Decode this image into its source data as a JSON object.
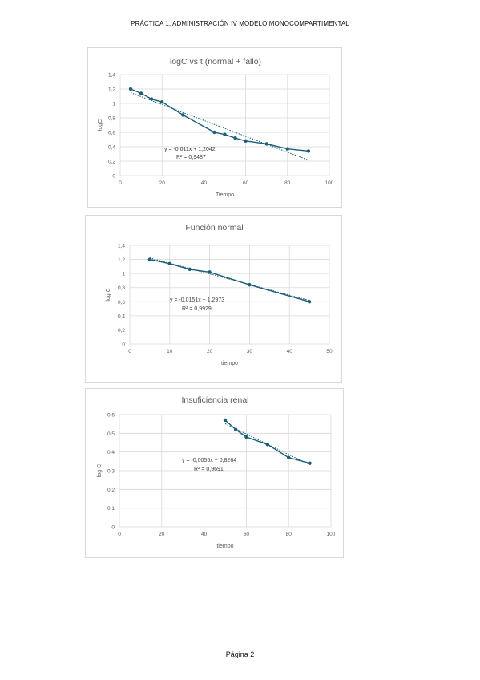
{
  "header": {
    "title": "PRÁCTICA 1. ADMINISTRACIÓN IV MODELO MONOCOMPARTIMENTAL"
  },
  "footer": {
    "page_label": "Página 2"
  },
  "colors": {
    "series": "#1b5e7a",
    "grid": "#d9d9d9",
    "axis_text": "#595959"
  },
  "chart_data": [
    {
      "type": "scatter",
      "title": "logC vs t (normal + fallo)",
      "xlabel": "Tiempo",
      "ylabel": "logC",
      "xlim": [
        0,
        100
      ],
      "ylim": [
        0,
        1.4
      ],
      "xticks": [
        "0",
        "20",
        "40",
        "60",
        "80",
        "100"
      ],
      "yticks": [
        "0",
        "0,2",
        "0,4",
        "0,6",
        "0,8",
        "1",
        "1,2",
        "1,4"
      ],
      "grid": true,
      "x": [
        5,
        10,
        15,
        20,
        30,
        45,
        50,
        55,
        60,
        70,
        80,
        90
      ],
      "y": [
        1.2,
        1.14,
        1.06,
        1.02,
        0.84,
        0.6,
        0.57,
        0.52,
        0.48,
        0.44,
        0.37,
        0.34
      ],
      "trendline": {
        "slope": -0.011,
        "intercept": 1.2042,
        "x_range": [
          5,
          90
        ]
      },
      "equation": "y = -0,011x + 1,2042",
      "r2": "R² = 0,9487"
    },
    {
      "type": "scatter",
      "title": "Función normal",
      "xlabel": "tiempo",
      "ylabel": "log C",
      "xlim": [
        0,
        50
      ],
      "ylim": [
        0,
        1.4
      ],
      "xticks": [
        "0",
        "10",
        "20",
        "30",
        "40",
        "50"
      ],
      "yticks": [
        "0",
        "0,2",
        "0,4",
        "0,6",
        "0,8",
        "1",
        "1,2",
        "1,4"
      ],
      "grid": true,
      "x": [
        5,
        10,
        15,
        20,
        30,
        45
      ],
      "y": [
        1.2,
        1.14,
        1.06,
        1.02,
        0.84,
        0.6
      ],
      "trendline": {
        "slope": -0.0151,
        "intercept": 1.2973,
        "x_range": [
          5,
          45
        ]
      },
      "equation": "y = -0,0151x + 1,2973",
      "r2": "R² = 0,9929"
    },
    {
      "type": "scatter",
      "title": "Insuficiencia renal",
      "xlabel": "tiempo",
      "ylabel": "log C",
      "xlim": [
        0,
        100
      ],
      "ylim": [
        0,
        0.6
      ],
      "xticks": [
        "0",
        "20",
        "40",
        "60",
        "80",
        "100"
      ],
      "yticks": [
        "0",
        "0,1",
        "0,2",
        "0,3",
        "0,4",
        "0,5",
        "0,6"
      ],
      "grid": true,
      "x": [
        50,
        55,
        60,
        70,
        80,
        90
      ],
      "y": [
        0.57,
        0.52,
        0.48,
        0.44,
        0.37,
        0.34
      ],
      "trendline": {
        "slope": -0.0055,
        "intercept": 0.8264,
        "x_range": [
          50,
          90
        ]
      },
      "equation": "y = -0,0055x + 0,8264",
      "r2": "R² = 0,9691"
    }
  ]
}
